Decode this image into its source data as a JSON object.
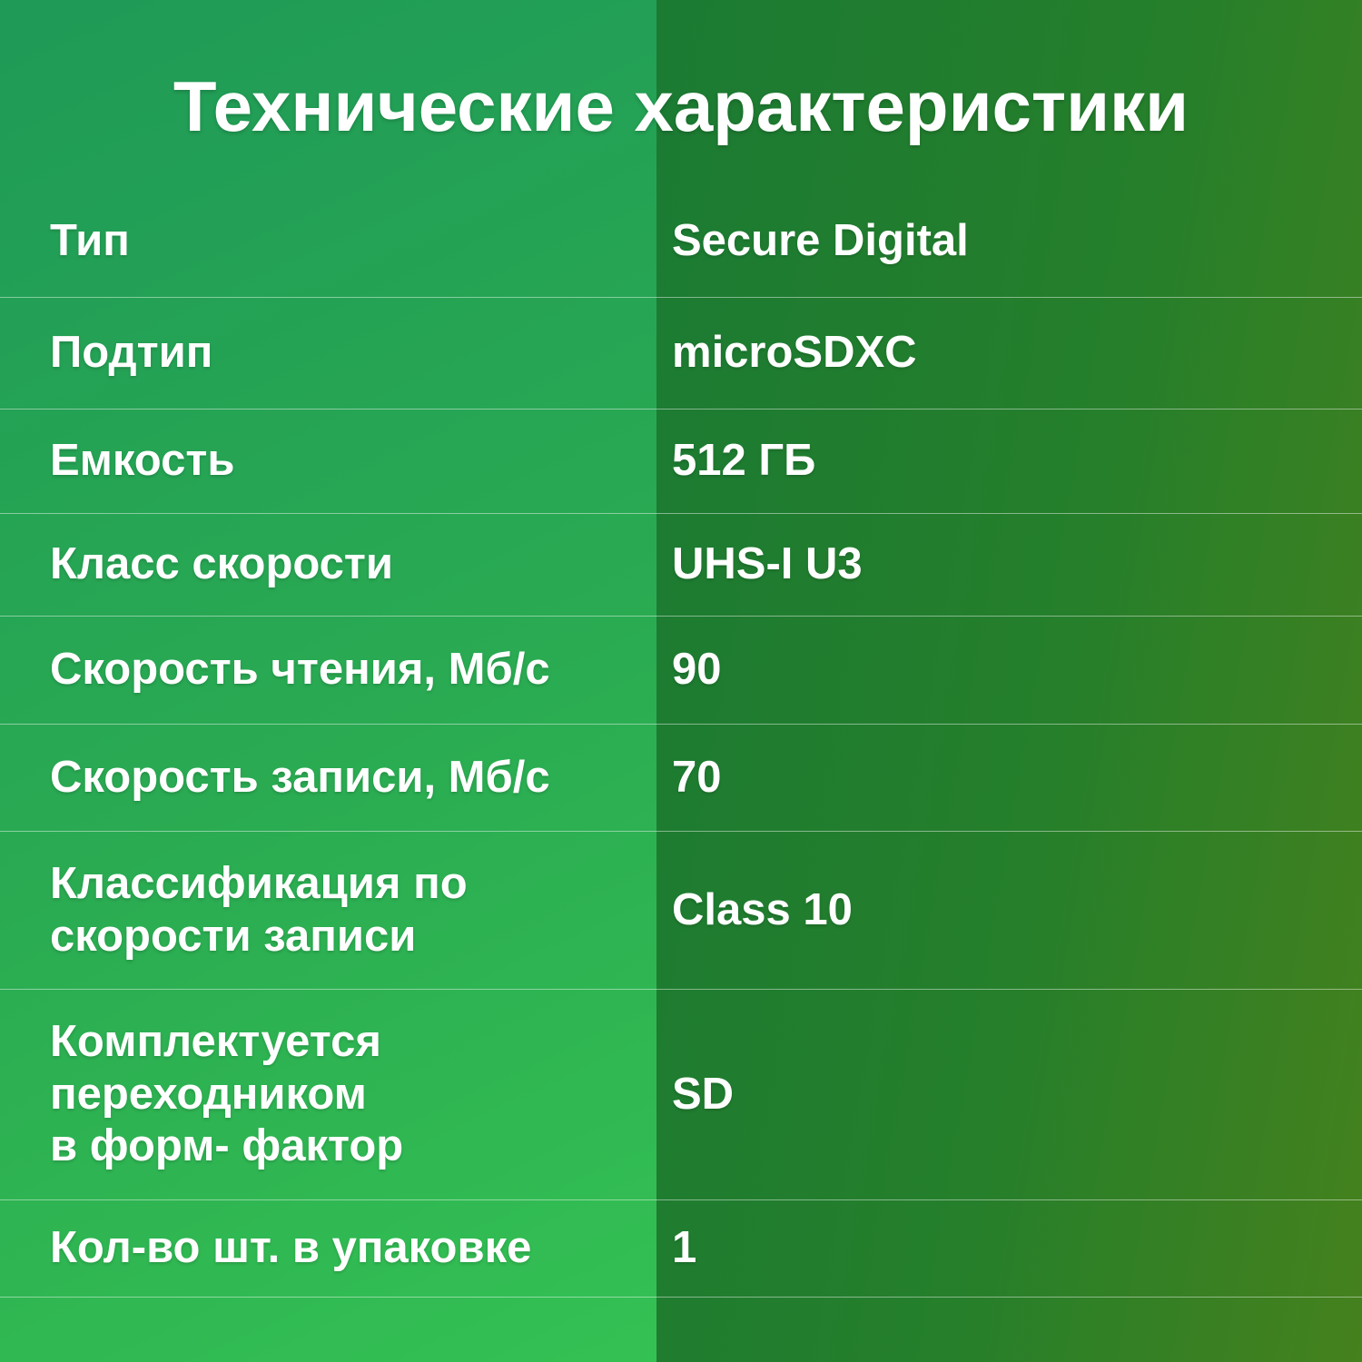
{
  "page": {
    "title": "Технические характеристики"
  },
  "colors": {
    "left_panel_gradient_start": "#1f9a57",
    "left_panel_gradient_end": "#34c153",
    "right_panel_gradient_start": "#1b7b33",
    "right_panel_gradient_end": "#45811d",
    "divider": "rgba(255,255,255,0.45)",
    "text": "#ffffff"
  },
  "spec_table": {
    "rows": [
      {
        "label": "Тип",
        "value": "Secure Digital"
      },
      {
        "label": "Подтип",
        "value": "microSDXC"
      },
      {
        "label": "Емкость",
        "value": "512 ГБ"
      },
      {
        "label": "Класс скорости",
        "value": "UHS-I U3"
      },
      {
        "label": "Скорость чтения, Мб/с",
        "value": "90"
      },
      {
        "label": "Скорость записи, Мб/с",
        "value": "70"
      },
      {
        "label": "Классификация по\nскорости записи",
        "value": "Class 10"
      },
      {
        "label": "Комплектуется\nпереходником\nв форм- фактор",
        "value": "SD"
      },
      {
        "label": "Кол-во шт. в упаковке",
        "value": "1"
      }
    ]
  }
}
